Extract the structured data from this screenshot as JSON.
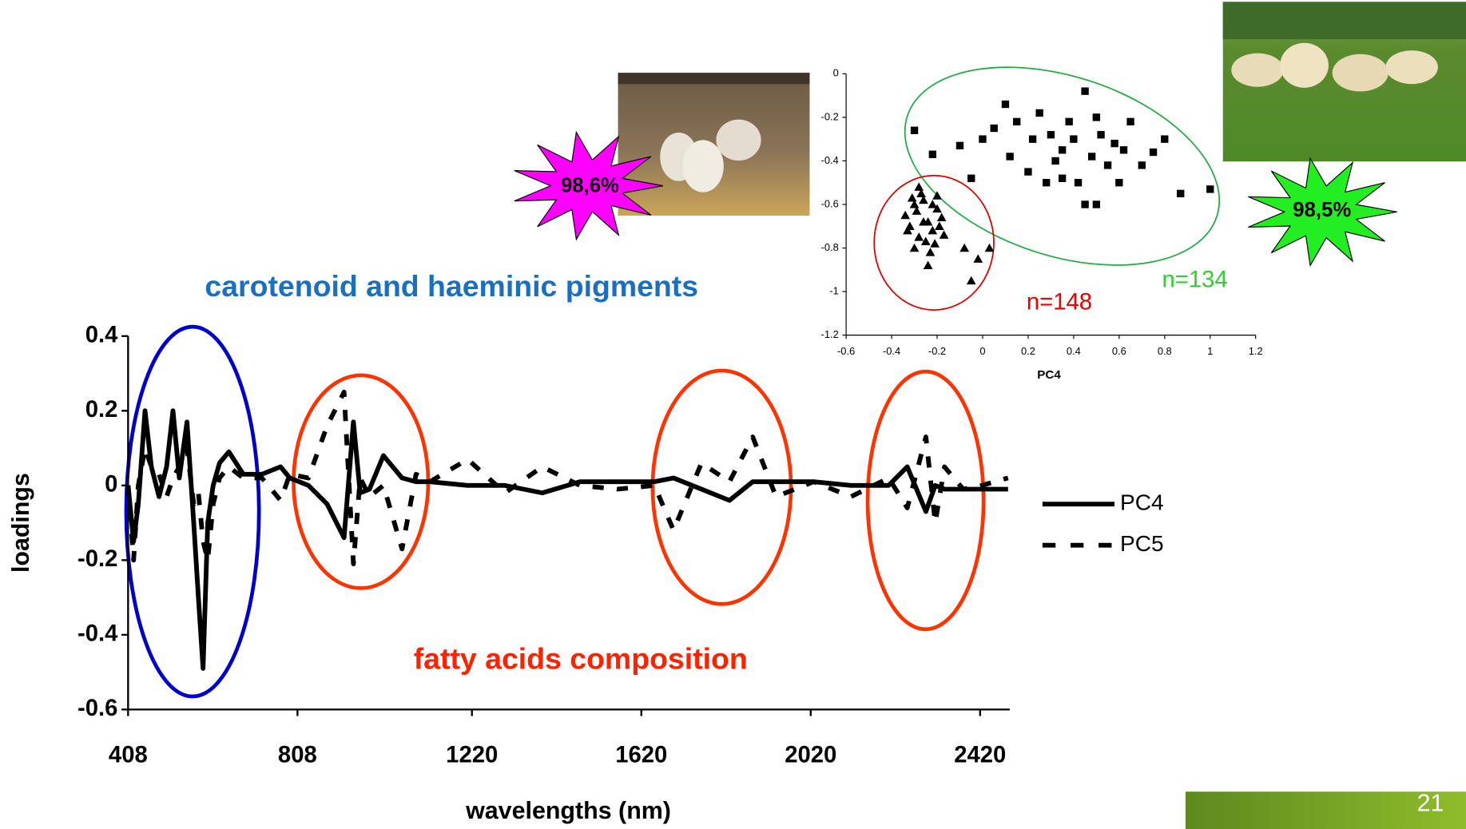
{
  "chart_data": [
    {
      "type": "line",
      "xlabel": "wavelengths (nm)",
      "ylabel": "loadings",
      "xlim": [
        408,
        2490
      ],
      "xticks": [
        408,
        808,
        1220,
        1620,
        2020,
        2420
      ],
      "ylim": [
        -0.6,
        0.4
      ],
      "yticks": [
        -0.6,
        -0.4,
        -0.2,
        0,
        0.2,
        0.4
      ],
      "x": [
        408,
        421,
        432,
        448,
        463,
        481,
        499,
        514,
        529,
        547,
        563,
        574,
        585,
        596,
        609,
        624,
        646,
        680,
        724,
        768,
        790,
        834,
        878,
        918,
        940,
        956,
        978,
        1011,
        1055,
        1088,
        1121,
        1210,
        1298,
        1386,
        1475,
        1563,
        1651,
        1696,
        1762,
        1828,
        1883,
        1938,
        2027,
        2115,
        2204,
        2248,
        2292,
        2314,
        2336,
        2380,
        2424,
        2486
      ],
      "series": [
        {
          "name": "PC4",
          "color": "#000000",
          "style": "solid",
          "values": [
            0,
            -0.15,
            -0.05,
            0.2,
            0.05,
            -0.03,
            0.05,
            0.2,
            0.02,
            0.17,
            -0.1,
            -0.3,
            -0.49,
            -0.1,
            0,
            0.06,
            0.09,
            0.03,
            0.03,
            0.05,
            0.02,
            0,
            -0.05,
            -0.14,
            0.17,
            -0.02,
            -0.01,
            0.08,
            0.02,
            0.01,
            0.01,
            0,
            0,
            -0.02,
            0.01,
            0.01,
            0.01,
            0.02,
            -0.01,
            -0.04,
            0.01,
            0.01,
            0.01,
            0,
            0,
            0.05,
            -0.07,
            0,
            -0.01,
            -0.01,
            -0.01,
            -0.01
          ]
        },
        {
          "name": "PC5",
          "color": "#000000",
          "style": "dashed",
          "values": [
            0,
            -0.2,
            0,
            0.1,
            0.05,
            0.03,
            -0.03,
            0.02,
            0.05,
            0.1,
            -0.05,
            -0.02,
            -0.15,
            -0.2,
            -0.05,
            0.02,
            0.05,
            0.02,
            0.02,
            -0.04,
            0.03,
            0.02,
            0.16,
            0.25,
            -0.21,
            0.02,
            -0.03,
            0,
            -0.17,
            0.03,
            0.01,
            0.07,
            -0.02,
            0.05,
            0,
            -0.01,
            0,
            -0.12,
            0.06,
            0.01,
            0.13,
            -0.03,
            0.01,
            -0.03,
            0.02,
            -0.06,
            0.13,
            -0.1,
            0.05,
            -0.01,
            0,
            0.02
          ]
        }
      ],
      "annotations": [
        "carotenoid and haeminic pigments",
        "fatty acids composition"
      ]
    },
    {
      "type": "scatter",
      "xlabel": "PC4",
      "xlim": [
        -0.6,
        1.2
      ],
      "xticks": [
        -0.6,
        -0.4,
        -0.2,
        0,
        0.2,
        0.4,
        0.6,
        0.8,
        1,
        1.2
      ],
      "ylim": [
        -1.2,
        0
      ],
      "yticks": [
        -1.2,
        -1,
        -0.8,
        -0.6,
        -0.4,
        -0.2,
        0
      ],
      "series": [
        {
          "marker": "triangle",
          "color": "#000000",
          "x": [
            -0.34,
            -0.32,
            -0.3,
            -0.28,
            -0.26,
            -0.24,
            -0.22,
            -0.2,
            -0.18,
            -0.3,
            -0.27,
            -0.25,
            -0.22,
            -0.19,
            -0.33,
            -0.29,
            -0.23,
            -0.21,
            -0.26,
            -0.31,
            -0.17,
            -0.08,
            -0.05,
            0.03,
            -0.02,
            -0.28,
            -0.24,
            -0.2
          ],
          "values": [
            -0.65,
            -0.7,
            -0.6,
            -0.75,
            -0.58,
            -0.68,
            -0.72,
            -0.62,
            -0.66,
            -0.8,
            -0.55,
            -0.77,
            -0.6,
            -0.7,
            -0.72,
            -0.63,
            -0.82,
            -0.78,
            -0.68,
            -0.57,
            -0.74,
            -0.8,
            -0.95,
            -0.8,
            -0.85,
            -0.52,
            -0.88,
            -0.56
          ]
        },
        {
          "marker": "square",
          "color": "#000000",
          "x": [
            -0.3,
            -0.22,
            -0.1,
            -0.05,
            0,
            0.05,
            0.1,
            0.12,
            0.15,
            0.2,
            0.22,
            0.25,
            0.28,
            0.3,
            0.32,
            0.35,
            0.38,
            0.4,
            0.42,
            0.45,
            0.48,
            0.5,
            0.52,
            0.55,
            0.58,
            0.6,
            0.62,
            0.65,
            0.7,
            0.75,
            0.8,
            0.87,
            1,
            0.45,
            0.35,
            0.5
          ],
          "values": [
            -0.26,
            -0.37,
            -0.33,
            -0.48,
            -0.3,
            -0.25,
            -0.14,
            -0.38,
            -0.22,
            -0.45,
            -0.3,
            -0.18,
            -0.5,
            -0.28,
            -0.4,
            -0.35,
            -0.22,
            -0.3,
            -0.5,
            -0.08,
            -0.38,
            -0.6,
            -0.28,
            -0.42,
            -0.32,
            -0.5,
            -0.35,
            -0.22,
            -0.42,
            -0.36,
            -0.3,
            -0.55,
            -0.53,
            -0.6,
            -0.48,
            -0.2
          ]
        }
      ],
      "annotations": [
        "n=148",
        "n=134",
        "98,6%",
        "98,5%"
      ]
    }
  ],
  "footer": {
    "page_number": "21"
  }
}
